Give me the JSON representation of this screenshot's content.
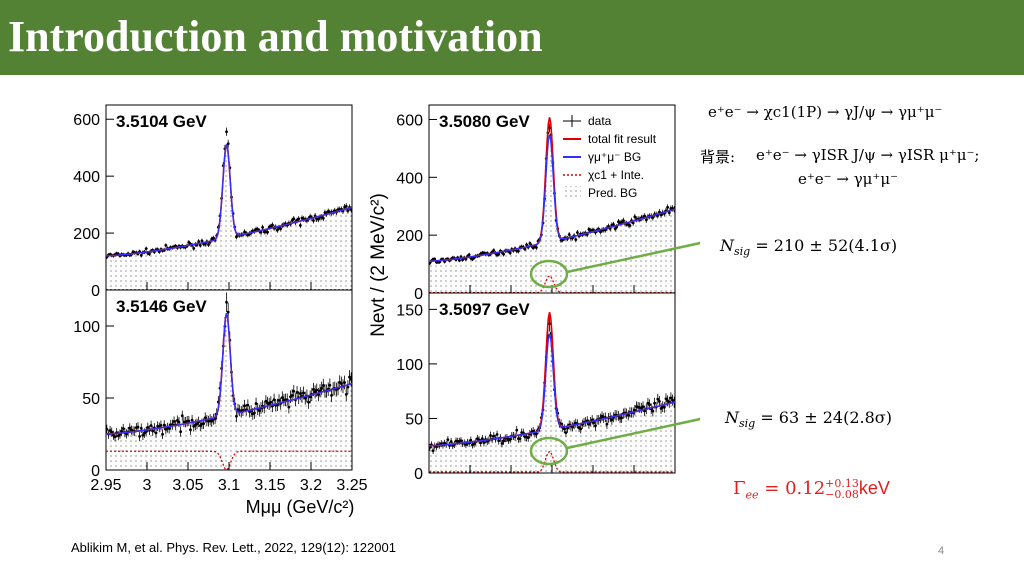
{
  "slide": {
    "title": "Introduction and motivation",
    "page_number": "4",
    "reference": "Ablikim M, et al. Phys. Rev. Lett., 2022, 129(12): 122001"
  },
  "equations": {
    "process_lhs": "e",
    "process": "e⁺e⁻ → χc1(1P) → γJ/ψ → γμ⁺μ⁻",
    "background_label": "背景:",
    "background_1": "e⁺e⁻ → γISR J/ψ → γISR μ⁺μ⁻;",
    "background_2": "e⁺e⁻ → γμ⁺μ⁻",
    "nsig_1": "= 210 ± 52(4.1σ)",
    "nsig_2": "= 63 ± 24(2.8σ)",
    "nsig_symbol": "N",
    "nsig_sub": "sig",
    "gamma_symbol": "Γ",
    "gamma_sub": "ee",
    "gamma_value": "= 0.12",
    "gamma_up": "+0.13",
    "gamma_down": "−0.08",
    "gamma_unit": "keV"
  },
  "colors": {
    "title_bar": "#548235",
    "data": "#000000",
    "total_fit": "#e00000",
    "bg_fit": "#3030ff",
    "signal": "#e00000",
    "highlight": "#70ad47"
  },
  "chart_data": {
    "type": "scatter",
    "ylabel": "Nevt / (2 MeV/c²)",
    "xlabel": "Mμμ (GeV/c²)",
    "x_ticks": [
      "2.95",
      "3",
      "3.05",
      "3.1",
      "3.15",
      "3.2",
      "3.25"
    ],
    "xlim": [
      2.95,
      3.25
    ],
    "legend": {
      "placement": "top-right of panel 3.5080 GeV",
      "entries": [
        "data",
        "total fit result",
        "γμ⁺μ⁻ BG",
        "χc1 + Inte.",
        "Pred. BG"
      ]
    },
    "panels": [
      {
        "label": "3.5104 GeV",
        "ylim": [
          0,
          650
        ],
        "y_ticks": [
          "0",
          "200",
          "400",
          "600"
        ],
        "baseline": [
          120,
          290
        ],
        "peak": 540,
        "signal_amp": 0
      },
      {
        "label": "3.5080 GeV",
        "ylim": [
          0,
          650
        ],
        "y_ticks": [
          "0",
          "200",
          "400",
          "600"
        ],
        "baseline": [
          110,
          290
        ],
        "peak": 580,
        "signal_amp": 60
      },
      {
        "label": "3.5146 GeV",
        "ylim": [
          0,
          125
        ],
        "y_ticks": [
          "0",
          "50",
          "100"
        ],
        "baseline": [
          25,
          60
        ],
        "peak": 115,
        "signal_amp": -13
      },
      {
        "label": "3.5097 GeV",
        "ylim": [
          0,
          165
        ],
        "y_ticks": [
          "0",
          "50",
          "100",
          "150"
        ],
        "baseline": [
          25,
          65
        ],
        "peak": 135,
        "signal_amp": 20
      }
    ]
  }
}
